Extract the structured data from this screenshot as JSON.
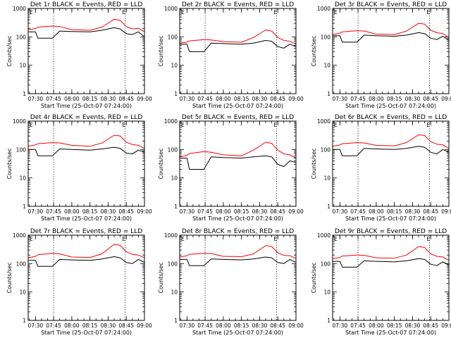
{
  "figure": {
    "colors": {
      "events": "#000000",
      "lld": "#ff0000",
      "background": "#ffffff",
      "axes": "#000000"
    }
  },
  "chart_data": [
    {
      "type": "line",
      "title": "Det 1r BLACK = Events, RED = LLD",
      "xlabel": "Start Time (25-Oct-07 07:24:00)",
      "ylabel": "Counts/sec",
      "yscale": "log",
      "ylim": [
        1,
        1000
      ],
      "xlim": [
        "07:24",
        "09:00"
      ],
      "x_tick_labels": [
        "07:30",
        "07:45",
        "08:00",
        "08:15",
        "08:30",
        "08:45",
        "09:00"
      ],
      "y_tick_labels": [
        "1",
        "10",
        "100",
        "1000"
      ],
      "markers": [
        {
          "label": "E",
          "time": "08:43"
        }
      ],
      "vertical_dotted_lines": [
        "07:45",
        "08:44"
      ],
      "x": [
        "07:24",
        "07:30",
        "07:32",
        "07:44",
        "07:50",
        "08:00",
        "08:15",
        "08:25",
        "08:35",
        "08:40",
        "08:45",
        "08:50",
        "08:55",
        "09:00"
      ],
      "series": [
        {
          "name": "Events",
          "color": "#000000",
          "values": [
            150,
            150,
            90,
            90,
            160,
            155,
            150,
            170,
            210,
            190,
            130,
            120,
            150,
            100
          ]
        },
        {
          "name": "LLD",
          "color": "#ff0000",
          "values": [
            180,
            195,
            220,
            240,
            230,
            180,
            170,
            220,
            420,
            380,
            230,
            190,
            200,
            150
          ]
        }
      ]
    },
    {
      "type": "line",
      "title": "Det 2r BLACK = Events, RED = LLD",
      "xlabel": "Start Time (25-Oct-07 07:24:00)",
      "ylabel": "Counts/sec",
      "yscale": "log",
      "ylim": [
        1,
        1000
      ],
      "xlim": [
        "07:24",
        "09:00"
      ],
      "x_tick_labels": [
        "07:30",
        "07:45",
        "08:00",
        "08:15",
        "08:30",
        "08:45",
        "09:00"
      ],
      "y_tick_labels": [
        "1",
        "10",
        "100",
        "1000"
      ],
      "markers": [
        {
          "label": "E",
          "time": "08:43"
        }
      ],
      "vertical_dotted_lines": [
        "07:45",
        "08:44"
      ],
      "x": [
        "07:24",
        "07:30",
        "07:32",
        "07:44",
        "07:50",
        "08:00",
        "08:15",
        "08:25",
        "08:35",
        "08:40",
        "08:45",
        "08:50",
        "08:55",
        "09:00"
      ],
      "series": [
        {
          "name": "Events",
          "color": "#000000",
          "values": [
            55,
            55,
            30,
            30,
            60,
            58,
            55,
            60,
            75,
            70,
            45,
            40,
            55,
            45
          ]
        },
        {
          "name": "LLD",
          "color": "#ff0000",
          "values": [
            60,
            65,
            72,
            80,
            78,
            68,
            65,
            95,
            175,
            160,
            95,
            75,
            70,
            55
          ]
        }
      ]
    },
    {
      "type": "line",
      "title": "Det 3r BLACK = Events, RED = LLD",
      "xlabel": "Start Time (25-Oct-07 07:24:00)",
      "ylabel": "Counts/sec",
      "yscale": "log",
      "ylim": [
        1,
        1000
      ],
      "xlim": [
        "07:24",
        "09:00"
      ],
      "x_tick_labels": [
        "07:30",
        "07:45",
        "08:00",
        "08:15",
        "08:30",
        "08:45",
        "09:00"
      ],
      "y_tick_labels": [
        "1",
        "10",
        "100",
        "1000"
      ],
      "markers": [
        {
          "label": "E",
          "time": "08:43"
        }
      ],
      "vertical_dotted_lines": [
        "07:45",
        "08:44"
      ],
      "x": [
        "07:24",
        "07:30",
        "07:32",
        "07:44",
        "07:50",
        "08:00",
        "08:15",
        "08:25",
        "08:35",
        "08:40",
        "08:45",
        "08:50",
        "08:55",
        "09:00"
      ],
      "series": [
        {
          "name": "Events",
          "color": "#000000",
          "values": [
            110,
            110,
            65,
            65,
            115,
            110,
            105,
            115,
            140,
            130,
            90,
            80,
            105,
            75
          ]
        },
        {
          "name": "LLD",
          "color": "#ff0000",
          "values": [
            120,
            135,
            150,
            165,
            160,
            125,
            120,
            160,
            300,
            280,
            170,
            140,
            130,
            95
          ]
        }
      ]
    },
    {
      "type": "line",
      "title": "Det 4r BLACK = Events, RED = LLD",
      "xlabel": "Start Time (25-Oct-07 07:24:00)",
      "ylabel": "Counts/sec",
      "yscale": "log",
      "ylim": [
        1,
        1000
      ],
      "xlim": [
        "07:24",
        "09:00"
      ],
      "x_tick_labels": [
        "07:30",
        "07:45",
        "08:00",
        "08:15",
        "08:30",
        "08:45",
        "09:00"
      ],
      "y_tick_labels": [
        "1",
        "10",
        "100",
        "1000"
      ],
      "markers": [
        {
          "label": "E",
          "time": "08:43"
        }
      ],
      "vertical_dotted_lines": [
        "07:45",
        "08:44"
      ],
      "x": [
        "07:24",
        "07:30",
        "07:32",
        "07:44",
        "07:50",
        "08:00",
        "08:15",
        "08:25",
        "08:35",
        "08:40",
        "08:45",
        "08:50",
        "08:55",
        "09:00"
      ],
      "series": [
        {
          "name": "Events",
          "color": "#000000",
          "values": [
            100,
            100,
            60,
            60,
            105,
            100,
            95,
            105,
            120,
            110,
            75,
            70,
            95,
            80
          ]
        },
        {
          "name": "LLD",
          "color": "#ff0000",
          "values": [
            130,
            145,
            160,
            175,
            170,
            140,
            130,
            170,
            320,
            300,
            180,
            150,
            140,
            110
          ]
        }
      ]
    },
    {
      "type": "line",
      "title": "Det 5r BLACK = Events, RED = LLD",
      "xlabel": "Start Time (25-Oct-07 07:24:00)",
      "ylabel": "Counts/sec",
      "yscale": "log",
      "ylim": [
        1,
        1000
      ],
      "xlim": [
        "07:24",
        "09:00"
      ],
      "x_tick_labels": [
        "07:30",
        "07:45",
        "08:00",
        "08:15",
        "08:30",
        "08:45",
        "09:00"
      ],
      "y_tick_labels": [
        "1",
        "10",
        "100",
        "1000"
      ],
      "markers": [
        {
          "label": "E",
          "time": "08:43"
        }
      ],
      "vertical_dotted_lines": [
        "07:45",
        "08:44"
      ],
      "x": [
        "07:24",
        "07:30",
        "07:32",
        "07:44",
        "07:50",
        "08:00",
        "08:15",
        "08:25",
        "08:35",
        "08:40",
        "08:45",
        "08:50",
        "08:55",
        "09:00"
      ],
      "series": [
        {
          "name": "Events",
          "color": "#000000",
          "values": [
            50,
            50,
            20,
            20,
            55,
            52,
            50,
            55,
            60,
            55,
            30,
            25,
            40,
            35
          ]
        },
        {
          "name": "LLD",
          "color": "#ff0000",
          "values": [
            55,
            62,
            72,
            85,
            80,
            65,
            60,
            95,
            180,
            165,
            95,
            70,
            65,
            50
          ]
        }
      ]
    },
    {
      "type": "line",
      "title": "Det 6r BLACK = Events, RED = LLD",
      "xlabel": "Start Time (25-Oct-07 07:24:00)",
      "ylabel": "Counts/sec",
      "yscale": "log",
      "ylim": [
        1,
        1000
      ],
      "xlim": [
        "07:24",
        "09:00"
      ],
      "x_tick_labels": [
        "07:30",
        "07:45",
        "08:00",
        "08:15",
        "08:30",
        "08:45",
        "09:00"
      ],
      "y_tick_labels": [
        "1",
        "10",
        "100",
        "1000"
      ],
      "markers": [
        {
          "label": "E",
          "time": "08:43"
        }
      ],
      "vertical_dotted_lines": [
        "07:45",
        "08:44"
      ],
      "x": [
        "07:24",
        "07:30",
        "07:32",
        "07:44",
        "07:50",
        "08:00",
        "08:15",
        "08:25",
        "08:35",
        "08:40",
        "08:45",
        "08:50",
        "08:55",
        "09:00"
      ],
      "series": [
        {
          "name": "Events",
          "color": "#000000",
          "values": [
            100,
            100,
            60,
            60,
            110,
            105,
            100,
            110,
            130,
            120,
            80,
            70,
            100,
            80
          ]
        },
        {
          "name": "LLD",
          "color": "#ff0000",
          "values": [
            130,
            145,
            160,
            175,
            170,
            140,
            135,
            175,
            330,
            310,
            190,
            155,
            145,
            110
          ]
        }
      ]
    },
    {
      "type": "line",
      "title": "Det 7r BLACK = Events, RED = LLD",
      "xlabel": "Start Time (25-Oct-07 07:24:00)",
      "ylabel": "Counts/sec",
      "yscale": "log",
      "ylim": [
        1,
        1000
      ],
      "xlim": [
        "07:24",
        "09:00"
      ],
      "x_tick_labels": [
        "07:30",
        "07:45",
        "08:00",
        "08:15",
        "08:30",
        "08:45",
        "09:00"
      ],
      "y_tick_labels": [
        "1",
        "10",
        "100",
        "1000"
      ],
      "markers": [
        {
          "label": "E",
          "time": "08:43"
        }
      ],
      "vertical_dotted_lines": [
        "07:45",
        "08:44"
      ],
      "x": [
        "07:24",
        "07:30",
        "07:32",
        "07:44",
        "07:50",
        "08:00",
        "08:15",
        "08:25",
        "08:35",
        "08:40",
        "08:45",
        "08:50",
        "08:55",
        "09:00"
      ],
      "series": [
        {
          "name": "Events",
          "color": "#000000",
          "values": [
            130,
            130,
            80,
            80,
            140,
            135,
            130,
            145,
            175,
            160,
            110,
            100,
            140,
            110
          ]
        },
        {
          "name": "LLD",
          "color": "#ff0000",
          "values": [
            160,
            180,
            205,
            230,
            220,
            170,
            165,
            220,
            480,
            440,
            260,
            210,
            200,
            160
          ]
        }
      ]
    },
    {
      "type": "line",
      "title": "Det 8r BLACK = Events, RED = LLD",
      "xlabel": "Start Time (25-Oct-07 07:24:00)",
      "ylabel": "Counts/sec",
      "yscale": "log",
      "ylim": [
        1,
        1000
      ],
      "xlim": [
        "07:24",
        "09:00"
      ],
      "x_tick_labels": [
        "07:30",
        "07:45",
        "08:00",
        "08:15",
        "08:30",
        "08:45",
        "09:00"
      ],
      "y_tick_labels": [
        "1",
        "10",
        "100",
        "1000"
      ],
      "markers": [
        {
          "label": "E",
          "time": "08:43"
        }
      ],
      "vertical_dotted_lines": [
        "07:45",
        "08:44"
      ],
      "x": [
        "07:24",
        "07:30",
        "07:32",
        "07:44",
        "07:50",
        "08:00",
        "08:15",
        "08:25",
        "08:35",
        "08:40",
        "08:45",
        "08:50",
        "08:55",
        "09:00"
      ],
      "series": [
        {
          "name": "Events",
          "color": "#000000",
          "values": [
            140,
            140,
            85,
            85,
            145,
            140,
            135,
            145,
            170,
            160,
            110,
            100,
            140,
            110
          ]
        },
        {
          "name": "LLD",
          "color": "#ff0000",
          "values": [
            170,
            190,
            210,
            230,
            225,
            180,
            175,
            220,
            430,
            400,
            240,
            195,
            190,
            150
          ]
        }
      ]
    },
    {
      "type": "line",
      "title": "Det 9r BLACK = Events, RED = LLD",
      "xlabel": "Start Time (25-Oct-07 07:24:00)",
      "ylabel": "Counts/sec",
      "yscale": "log",
      "ylim": [
        1,
        1000
      ],
      "xlim": [
        "07:24",
        "09:00"
      ],
      "x_tick_labels": [
        "07:30",
        "07:45",
        "08:00",
        "08:15",
        "08:30",
        "08:45",
        "09:00"
      ],
      "y_tick_labels": [
        "1",
        "10",
        "100",
        "1000"
      ],
      "markers": [
        {
          "label": "E",
          "time": "08:43"
        }
      ],
      "vertical_dotted_lines": [
        "07:45",
        "08:44"
      ],
      "x": [
        "07:24",
        "07:30",
        "07:32",
        "07:44",
        "07:50",
        "08:00",
        "08:15",
        "08:25",
        "08:35",
        "08:40",
        "08:45",
        "08:50",
        "08:55",
        "09:00"
      ],
      "series": [
        {
          "name": "Events",
          "color": "#000000",
          "values": [
            120,
            120,
            75,
            75,
            125,
            120,
            115,
            125,
            150,
            140,
            95,
            85,
            115,
            90
          ]
        },
        {
          "name": "LLD",
          "color": "#ff0000",
          "values": [
            150,
            165,
            185,
            200,
            195,
            160,
            155,
            200,
            400,
            370,
            220,
            180,
            170,
            130
          ]
        }
      ]
    }
  ]
}
